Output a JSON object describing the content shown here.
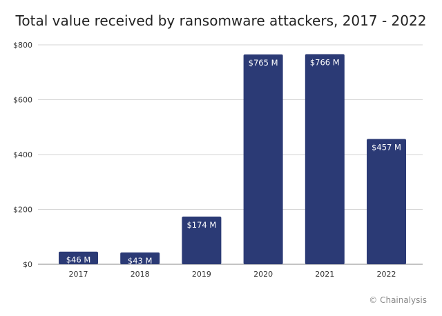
{
  "chart_data": {
    "type": "bar",
    "title": "Total value received by ransomware attackers, 2017 - 2022",
    "categories": [
      "2017",
      "2018",
      "2019",
      "2020",
      "2021",
      "2022"
    ],
    "values": [
      46,
      43,
      174,
      765,
      766,
      457
    ],
    "data_labels": [
      "$46 M",
      "$43 M",
      "$174 M",
      "$765 M",
      "$766 M",
      "$457 M"
    ],
    "xlabel": "",
    "ylabel": "",
    "ylim": [
      0,
      800
    ],
    "yticks": [
      0,
      200,
      400,
      600,
      800
    ],
    "ytick_labels": [
      "$0",
      "$200",
      "$400",
      "$600",
      "$800"
    ],
    "grid": true,
    "bar_color": "#2b3a75"
  },
  "credit": "© Chainalysis"
}
